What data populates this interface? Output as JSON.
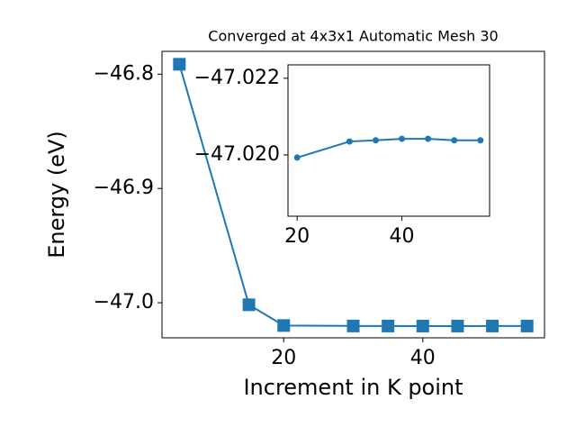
{
  "chart_data": [
    {
      "type": "line",
      "title": "Converged at 4x3x1 Automatic Mesh 30",
      "x_label": "Increment in K point",
      "y_label": "Energy (eV)",
      "x": [
        5,
        15,
        20,
        30,
        35,
        40,
        45,
        50,
        55
      ],
      "series": [
        {
          "color": "#1f77b4",
          "marker": "square",
          "values": [
            -46.7913,
            -47.0018,
            -47.01993,
            -47.02035,
            -47.02038,
            -47.02042,
            -47.02042,
            -47.02038,
            -47.02038
          ]
        }
      ],
      "xlim": [
        2.5,
        57.5
      ],
      "ylim": [
        -47.0307,
        -46.78
      ],
      "xticks": [
        20,
        40
      ],
      "yticks": [
        {
          "value": -46.8,
          "label": "−46.8"
        },
        {
          "value": -46.9,
          "label": "−46.9"
        },
        {
          "value": -47.0,
          "label": "−47.0"
        }
      ]
    },
    {
      "type": "line",
      "x": [
        20,
        30,
        35,
        40,
        45,
        50,
        55
      ],
      "series": [
        {
          "color": "#1f77b4",
          "marker": "circle",
          "values": [
            -47.01993,
            -47.02035,
            -47.02038,
            -47.02042,
            -47.02042,
            -47.02038,
            -47.02038
          ]
        }
      ],
      "xlim": [
        18.25,
        56.75
      ],
      "ylim": [
        -47.0184,
        -47.02235
      ],
      "xticks": [
        20,
        40
      ],
      "yticks": [
        {
          "value": -47.022,
          "label": "−47.022"
        },
        {
          "value": -47.02,
          "label": "−47.020"
        }
      ]
    }
  ]
}
